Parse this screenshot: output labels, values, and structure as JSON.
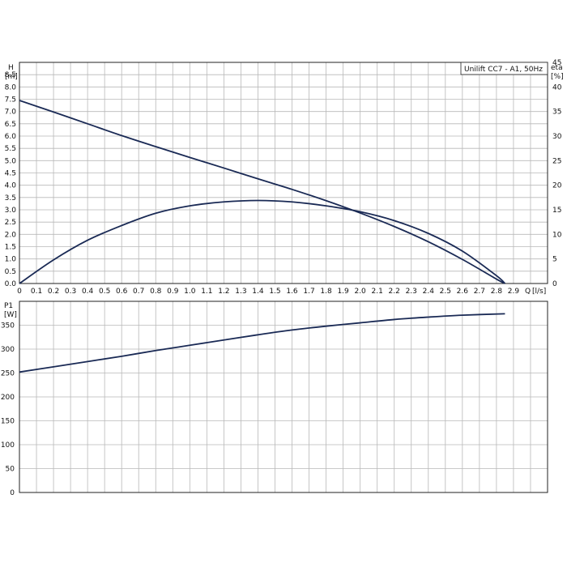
{
  "chart_data": [
    {
      "type": "line",
      "legend": "Unilift CC7 - A1, 50Hz",
      "legend_placement": "top-right",
      "xlabel": "Q [l/s]",
      "xlabel_parts": [
        "Q",
        "[l/s]"
      ],
      "ylabel": "H [m]",
      "ylabel_parts": [
        "H",
        "[m]"
      ],
      "y2label": "eta [%]",
      "y2label_parts": [
        "eta",
        "[%]"
      ],
      "xlim": [
        0,
        3.1
      ],
      "ylim": [
        0,
        9
      ],
      "y2lim": [
        0,
        45
      ],
      "grid": true,
      "x_ticks": [
        "0",
        "0.1",
        "0.2",
        "0.3",
        "0.4",
        "0.5",
        "0.6",
        "0.7",
        "0.8",
        "0.9",
        "1.0",
        "1.1",
        "1.2",
        "1.3",
        "1.4",
        "1.5",
        "1.6",
        "1.7",
        "1.8",
        "1.9",
        "2.0",
        "2.1",
        "2.2",
        "2.3",
        "2.4",
        "2.5",
        "2.6",
        "2.7",
        "2.8",
        "2.9"
      ],
      "y_ticks": [
        "0.0",
        "0.5",
        "1.0",
        "1.5",
        "2.0",
        "2.5",
        "3.0",
        "3.5",
        "4.0",
        "4.5",
        "5.0",
        "5.5",
        "6.0",
        "6.5",
        "7.0",
        "7.5",
        "8.0",
        "8.5"
      ],
      "y2_ticks": [
        "0",
        "5",
        "10",
        "15",
        "20",
        "25",
        "30",
        "35",
        "40",
        "45"
      ],
      "series": [
        {
          "axis": "left",
          "x": [
            0,
            0.2,
            0.4,
            0.6,
            0.8,
            1.0,
            1.2,
            1.4,
            1.6,
            1.8,
            2.0,
            2.2,
            2.4,
            2.6,
            2.8,
            2.85
          ],
          "values": [
            7.45,
            6.98,
            6.5,
            6.02,
            5.57,
            5.13,
            4.7,
            4.26,
            3.83,
            3.37,
            2.87,
            2.32,
            1.7,
            0.98,
            0.18,
            0.0
          ]
        },
        {
          "axis": "right",
          "x": [
            0,
            0.2,
            0.4,
            0.6,
            0.8,
            1.0,
            1.2,
            1.4,
            1.6,
            1.8,
            2.0,
            2.2,
            2.4,
            2.6,
            2.8,
            2.85
          ],
          "values": [
            0,
            4.8,
            8.8,
            11.8,
            14.3,
            15.8,
            16.6,
            16.9,
            16.6,
            15.8,
            14.6,
            12.8,
            10.2,
            6.6,
            1.6,
            0
          ]
        }
      ]
    },
    {
      "type": "line",
      "ylabel": "P1 [W]",
      "ylabel_parts": [
        "P1",
        "[W]"
      ],
      "xlim": [
        0,
        3.1
      ],
      "ylim": [
        0,
        400
      ],
      "grid": true,
      "y_ticks": [
        "0",
        "50",
        "100",
        "150",
        "200",
        "250",
        "300",
        "350"
      ],
      "series": [
        {
          "x": [
            0,
            0.2,
            0.4,
            0.6,
            0.8,
            1.0,
            1.2,
            1.4,
            1.6,
            1.8,
            2.0,
            2.2,
            2.4,
            2.6,
            2.85
          ],
          "values": [
            252,
            263,
            274,
            285,
            297,
            308,
            319,
            330,
            340,
            348,
            355,
            362,
            367,
            371,
            374
          ]
        }
      ]
    }
  ],
  "colors": {
    "curve": "#1a2a55",
    "grid": "#b8b8b8",
    "frame": "#222222"
  }
}
